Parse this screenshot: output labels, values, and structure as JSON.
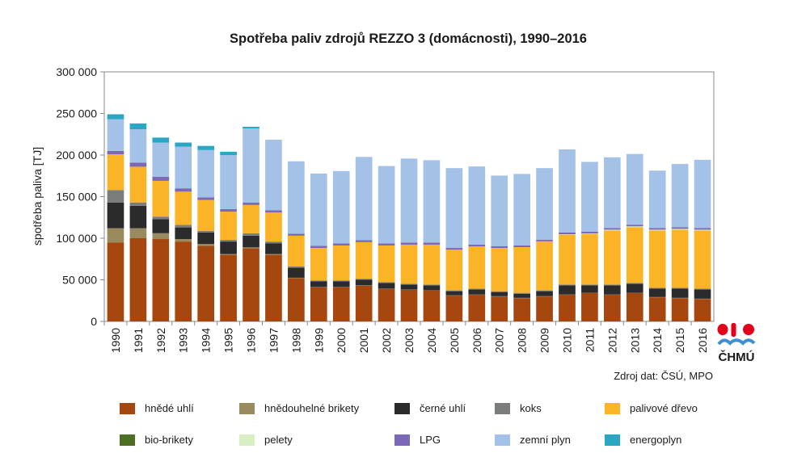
{
  "chart_data": {
    "type": "bar",
    "stacked": true,
    "title": "Spotřeba paliv zdrojů REZZO 3 (domácnosti), 1990–2016",
    "ylabel": "spotřeba paliva [TJ]",
    "xlabel": "",
    "ylim": [
      0,
      300000
    ],
    "yticks": [
      0,
      50000,
      100000,
      150000,
      200000,
      250000,
      300000
    ],
    "ytick_labels": [
      "0",
      "50 000",
      "100 000",
      "150 000",
      "200 000",
      "250 000",
      "300 000"
    ],
    "grid": false,
    "legend_position": "bottom",
    "categories": [
      "1990",
      "1991",
      "1992",
      "1993",
      "1994",
      "1995",
      "1996",
      "1997",
      "1998",
      "1999",
      "2000",
      "2001",
      "2002",
      "2003",
      "2004",
      "2005",
      "2006",
      "2007",
      "2008",
      "2009",
      "2010",
      "2011",
      "2012",
      "2013",
      "2014",
      "2015",
      "2016"
    ],
    "series": [
      {
        "name": "hnědé uhlí",
        "color": "#a5470f",
        "values": [
          95000,
          100000,
          99000,
          96000,
          91000,
          80000,
          88000,
          80000,
          52000,
          41000,
          41000,
          43000,
          39000,
          38000,
          37000,
          31000,
          32000,
          30000,
          28000,
          30000,
          32000,
          34000,
          32000,
          34000,
          29000,
          28000,
          27000
        ]
      },
      {
        "name": "hnědouhelné brikety",
        "color": "#9a8b5e",
        "values": [
          17000,
          12000,
          7000,
          3000,
          2000,
          1000,
          1000,
          1000,
          500,
          300,
          300,
          300,
          300,
          300,
          300,
          300,
          300,
          300,
          300,
          300,
          300,
          300,
          300,
          300,
          300,
          300,
          300
        ]
      },
      {
        "name": "černé uhlí",
        "color": "#2b2b2b",
        "values": [
          31000,
          27000,
          17000,
          14000,
          14000,
          15000,
          14000,
          13000,
          12000,
          7000,
          7000,
          7000,
          7000,
          6000,
          6000,
          5000,
          6000,
          5000,
          5000,
          6000,
          11000,
          9000,
          11000,
          11000,
          10000,
          11000,
          11000
        ]
      },
      {
        "name": "koks",
        "color": "#7b7d7d",
        "values": [
          15000,
          4000,
          3000,
          3000,
          2000,
          2000,
          3000,
          2000,
          1500,
          1000,
          1000,
          1000,
          1000,
          1000,
          1000,
          1000,
          1000,
          1000,
          1000,
          1000,
          1000,
          1000,
          1000,
          1000,
          1000,
          1000,
          1000
        ]
      },
      {
        "name": "palivové dřevo",
        "color": "#fbb425",
        "values": [
          43000,
          43000,
          43000,
          40000,
          37000,
          34000,
          34000,
          35000,
          37000,
          39000,
          42000,
          44000,
          44000,
          47000,
          48000,
          49000,
          51000,
          52000,
          55000,
          59000,
          60000,
          61000,
          65000,
          67000,
          69000,
          70000,
          70000
        ]
      },
      {
        "name": "bio-brikety",
        "color": "#4c6f25",
        "values": [
          0,
          0,
          0,
          0,
          0,
          0,
          0,
          0,
          0,
          0,
          0,
          0,
          0,
          0,
          0,
          0,
          0,
          0,
          0,
          0,
          0,
          0,
          0,
          0,
          0,
          0,
          0
        ]
      },
      {
        "name": "pelety",
        "color": "#d8eec3",
        "values": [
          0,
          0,
          0,
          0,
          0,
          0,
          0,
          0,
          0,
          0,
          0,
          0,
          0,
          0,
          0,
          0,
          0,
          0,
          0,
          0,
          500,
          500,
          1000,
          1000,
          1000,
          1000,
          1000
        ]
      },
      {
        "name": "LPG",
        "color": "#7b68b6",
        "values": [
          4000,
          5000,
          5000,
          4000,
          3000,
          3000,
          3000,
          2500,
          2500,
          2500,
          2500,
          2500,
          2500,
          2500,
          2500,
          2000,
          2000,
          2000,
          2000,
          2000,
          2000,
          2000,
          2000,
          2000,
          2000,
          2000,
          2000
        ]
      },
      {
        "name": "zemní plyn",
        "color": "#a4c1e8",
        "values": [
          38000,
          40000,
          41000,
          50000,
          57000,
          65000,
          89000,
          85000,
          87000,
          87000,
          87000,
          100000,
          93000,
          101000,
          99000,
          96000,
          94000,
          85000,
          86000,
          86000,
          100000,
          84000,
          85000,
          85000,
          69000,
          76000,
          82000
        ]
      },
      {
        "name": "energoplyn",
        "color": "#2ba6c3",
        "values": [
          6000,
          7000,
          6000,
          5000,
          5000,
          4000,
          2000,
          0,
          0,
          0,
          0,
          0,
          0,
          0,
          0,
          0,
          0,
          0,
          0,
          0,
          0,
          0,
          0,
          0,
          0,
          0,
          0
        ]
      }
    ]
  },
  "source_text": "Zdroj dat: ČSÚ, MPO",
  "logo": {
    "text": "ČHMÚ",
    "color_red": "#e2001a",
    "color_blue": "#3a8fd6",
    "icon": "chmu-logo-icon"
  },
  "colors": {
    "axis": "#8a8a8a",
    "text": "#1a1a1a"
  }
}
